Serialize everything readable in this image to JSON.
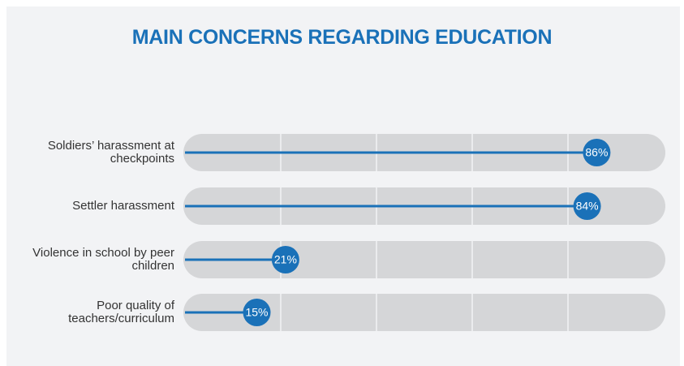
{
  "chart_data": {
    "type": "lollipop",
    "title": "MAIN CONCERNS REGARDING EDUCATION",
    "categories": [
      "Soldiers’ harassment at checkpoints",
      "Settler harassment",
      "Violence in school by peer children",
      "Poor quality of teachers/curriculum"
    ],
    "values": [
      86,
      84,
      21,
      15
    ],
    "value_labels": [
      "86%",
      "84%",
      "21%",
      "15%"
    ],
    "color": "#1a71b8",
    "xlim": [
      0,
      100
    ],
    "xticks": [
      20,
      40,
      60,
      80
    ],
    "grid": true
  }
}
